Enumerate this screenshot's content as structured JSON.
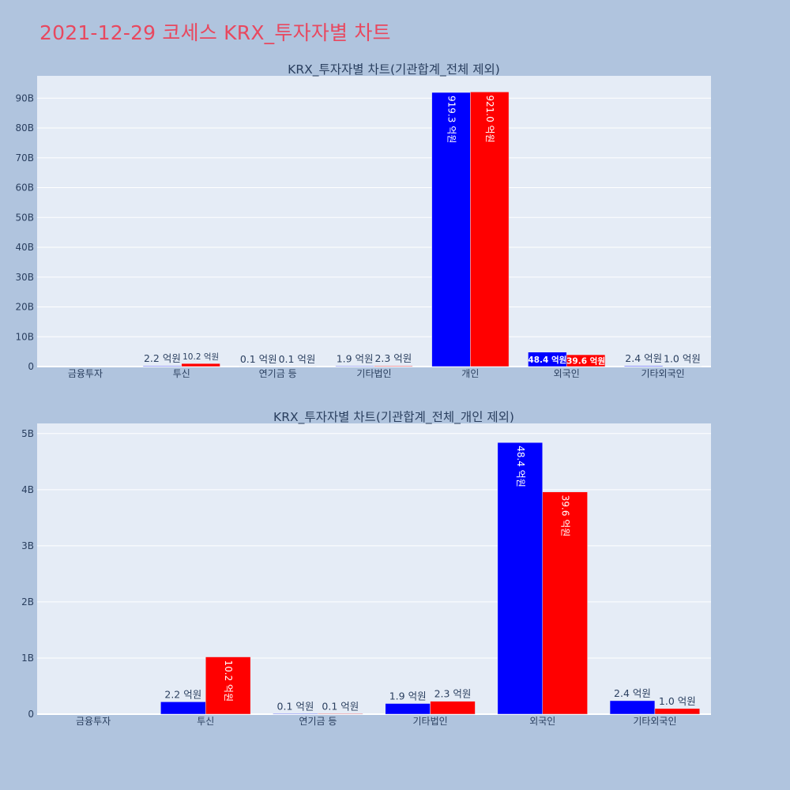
{
  "page": {
    "title": "2021-12-29 코세스 KRX_투자자별 차트",
    "title_color": "#e8485f",
    "background": "#b0c4de",
    "plot_background": "#e5ecf6"
  },
  "chart_data": [
    {
      "type": "bar",
      "title": "KRX_투자자별 차트(기관합계_전체 제외)",
      "xlabel": "",
      "ylabel": "",
      "categories": [
        "금융투자",
        "투신",
        "연기금 등",
        "기타법인",
        "개인",
        "외국인",
        "기타외국인"
      ],
      "ylim": [
        0,
        97.5
      ],
      "y_unit": "B",
      "y_ticks": [
        0,
        10,
        20,
        30,
        40,
        50,
        60,
        70,
        80,
        90
      ],
      "y_tick_labels": [
        "0",
        "10B",
        "20B",
        "30B",
        "40B",
        "50B",
        "60B",
        "70B",
        "80B",
        "90B"
      ],
      "grid": true,
      "legend": "none",
      "series": [
        {
          "color": "#0000ff",
          "values": [
            0,
            0.22,
            0.01,
            0.19,
            91.93,
            4.84,
            0.24
          ],
          "labels": [
            "",
            "2.2 억원",
            "0.1 억원",
            "1.9 억원",
            "919.3 억원",
            "48.4 억원",
            "2.4 억원"
          ]
        },
        {
          "color": "#ff0000",
          "values": [
            0,
            1.02,
            0.01,
            0.23,
            92.1,
            3.96,
            0.1
          ],
          "labels": [
            "",
            "10.2 억원",
            "0.1 억원",
            "2.3 억원",
            "921.0 억원",
            "39.6 억원",
            "1.0 억원"
          ]
        }
      ]
    },
    {
      "type": "bar",
      "title": "KRX_투자자별 차트(기관합계_전체_개인 제외)",
      "xlabel": "",
      "ylabel": "",
      "categories": [
        "금융투자",
        "투신",
        "연기금 등",
        "기타법인",
        "외국인",
        "기타외국인"
      ],
      "ylim": [
        0,
        5.18
      ],
      "y_unit": "B",
      "y_ticks": [
        0,
        1,
        2,
        3,
        4,
        5
      ],
      "y_tick_labels": [
        "0",
        "1B",
        "2B",
        "3B",
        "4B",
        "5B"
      ],
      "grid": true,
      "legend": "none",
      "series": [
        {
          "color": "#0000ff",
          "values": [
            0,
            0.22,
            0.01,
            0.19,
            4.84,
            0.24
          ],
          "labels": [
            "",
            "2.2 억원",
            "0.1 억원",
            "1.9 억원",
            "48.4 억원",
            "2.4 억원"
          ]
        },
        {
          "color": "#ff0000",
          "values": [
            0,
            1.02,
            0.01,
            0.23,
            3.96,
            0.1
          ],
          "labels": [
            "",
            "10.2 억원",
            "0.1 억원",
            "2.3 억원",
            "39.6 억원",
            "1.0 억원"
          ]
        }
      ]
    }
  ]
}
